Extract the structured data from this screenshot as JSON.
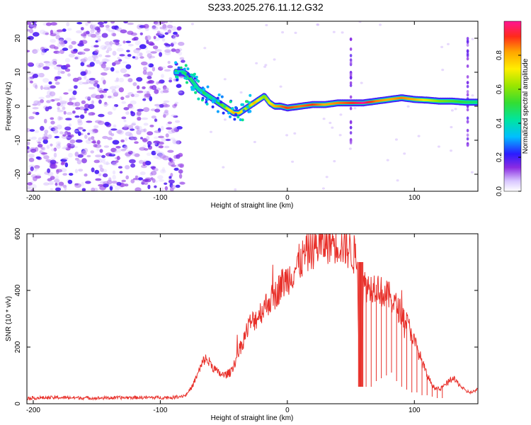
{
  "figure": {
    "title": "S233.2025.276.11.12.G32"
  },
  "chart_data": [
    {
      "type": "heatmap",
      "xlabel": "Height of straight line (km)",
      "ylabel": "Frequency (Hz)",
      "xlim": [
        -205,
        150
      ],
      "ylim": [
        -25,
        25
      ],
      "xticks": [
        -200,
        -100,
        0,
        100
      ],
      "yticks": [
        -20,
        -10,
        0,
        10,
        20
      ],
      "xtick_labels": [
        "-200",
        "-100",
        "0",
        "100"
      ],
      "ytick_labels": [
        "-20",
        "-10",
        "0",
        "10",
        "20"
      ],
      "colorbar": {
        "label": "Normalized spectral amplitude",
        "range": [
          0,
          1
        ],
        "ticks": [
          0.0,
          0.2,
          0.4,
          0.6,
          0.8
        ],
        "tick_labels": [
          "0.0",
          "0.2",
          "0.4",
          "0.6",
          "0.8"
        ]
      },
      "ridge": {
        "x": [
          -88,
          -82,
          -78,
          -74,
          -70,
          -66,
          -62,
          -58,
          -54,
          -50,
          -46,
          -42,
          -38,
          -34,
          -30,
          -26,
          -22,
          -18,
          -14,
          -10,
          -5,
          0,
          10,
          20,
          30,
          40,
          50,
          60,
          70,
          80,
          90,
          100,
          110,
          120,
          130,
          140,
          150
        ],
        "freq": [
          10,
          10,
          9,
          7,
          5,
          4,
          3,
          2,
          1,
          0,
          -1,
          -2,
          -2,
          -1,
          0,
          1,
          2,
          3,
          1,
          0,
          0,
          -0.5,
          0,
          0.5,
          0.5,
          1,
          1,
          1,
          1.5,
          2,
          2.5,
          2,
          1.8,
          1.5,
          1.5,
          1.2,
          1.2
        ],
        "amplitude": [
          0.3,
          0.45,
          0.5,
          0.45,
          0.4,
          0.5,
          0.4,
          0.5,
          0.5,
          0.6,
          0.7,
          0.8,
          0.75,
          0.7,
          0.6,
          0.8,
          0.7,
          0.6,
          0.7,
          0.8,
          0.85,
          0.9,
          0.85,
          0.9,
          0.8,
          0.85,
          0.9,
          1.0,
          0.85,
          0.8,
          0.85,
          0.8,
          0.7,
          0.6,
          0.55,
          0.5,
          0.45
        ]
      },
      "noise_region": {
        "x_range": [
          -205,
          -82
        ],
        "amplitude_range": [
          0.0,
          0.3
        ]
      }
    },
    {
      "type": "line",
      "xlabel": "Height of straight line (km)",
      "ylabel": "SNR (10 * v/v)",
      "xlim": [
        -205,
        150
      ],
      "ylim": [
        0,
        600
      ],
      "xticks": [
        -200,
        -100,
        0,
        100
      ],
      "yticks": [
        0,
        200,
        400,
        600
      ],
      "xtick_labels": [
        "-200",
        "-100",
        "0",
        "100"
      ],
      "ytick_labels": [
        "0",
        "200",
        "400",
        "600"
      ],
      "color": "#e8302a",
      "series": [
        {
          "name": "SNR",
          "x": [
            -205,
            -180,
            -150,
            -120,
            -90,
            -80,
            -75,
            -70,
            -65,
            -60,
            -55,
            -50,
            -45,
            -40,
            -35,
            -30,
            -25,
            -20,
            -15,
            -10,
            -5,
            0,
            5,
            10,
            15,
            20,
            25,
            30,
            35,
            40,
            45,
            50,
            55,
            57,
            60,
            65,
            70,
            75,
            80,
            85,
            90,
            95,
            100,
            105,
            110,
            115,
            120,
            125,
            130,
            135,
            140,
            145,
            150
          ],
          "y": [
            20,
            22,
            20,
            22,
            22,
            30,
            60,
            110,
            160,
            140,
            110,
            100,
            110,
            160,
            220,
            280,
            300,
            330,
            360,
            380,
            420,
            440,
            470,
            500,
            530,
            550,
            560,
            570,
            575,
            570,
            560,
            540,
            510,
            70,
            420,
            410,
            420,
            390,
            380,
            350,
            320,
            280,
            220,
            160,
            100,
            60,
            50,
            70,
            90,
            70,
            45,
            40,
            50
          ]
        }
      ],
      "dropouts": {
        "x": [
          57,
          62,
          66,
          70,
          74,
          78,
          82,
          86,
          90,
          94,
          98,
          102,
          106,
          110,
          114,
          118,
          122
        ],
        "y": [
          70,
          60,
          60,
          80,
          90,
          100,
          110,
          80,
          60,
          50,
          40,
          40,
          30,
          30,
          25,
          20,
          20
        ]
      }
    }
  ]
}
